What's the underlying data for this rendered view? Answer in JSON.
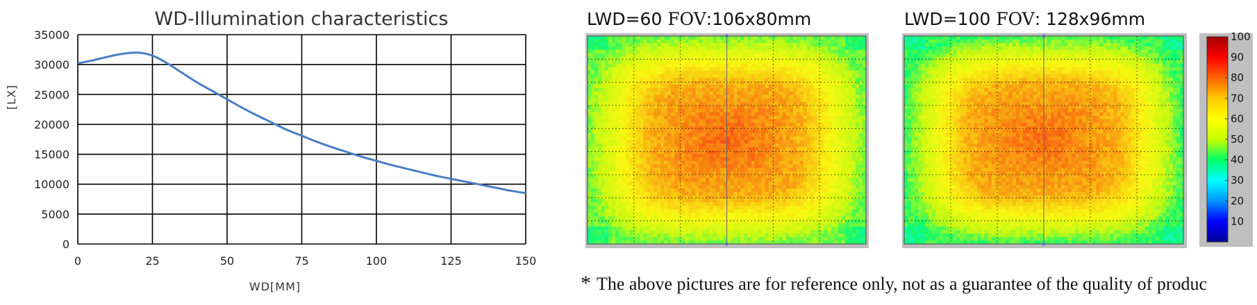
{
  "colors": {
    "line": "#4a7ec4",
    "grid": "#000000",
    "frame": "#bfbfbf"
  },
  "chart_data": [
    {
      "type": "line",
      "title": "WD-Illumination characteristics",
      "xlabel": "WD[MM]",
      "ylabel": "[LX]",
      "xlim": [
        0,
        150
      ],
      "ylim": [
        0,
        35000
      ],
      "x_ticks": [
        "0",
        "25",
        "50",
        "75",
        "100",
        "125",
        "150"
      ],
      "y_ticks": [
        "0",
        "5000",
        "10000",
        "15000",
        "20000",
        "25000",
        "30000",
        "35000"
      ],
      "grid": true,
      "series": [
        {
          "x": [
            0,
            5,
            10,
            15,
            20,
            25,
            30,
            35,
            40,
            45,
            50,
            55,
            60,
            65,
            70,
            75,
            80,
            85,
            90,
            95,
            100,
            105,
            110,
            115,
            120,
            125,
            130,
            135,
            140,
            145,
            150
          ],
          "y": [
            30200,
            30700,
            31300,
            31800,
            32000,
            31500,
            30200,
            28600,
            27000,
            25600,
            24200,
            22800,
            21500,
            20300,
            19100,
            18100,
            17100,
            16200,
            15400,
            14600,
            13900,
            13200,
            12600,
            12000,
            11400,
            10900,
            10400,
            9900,
            9400,
            8900,
            8500
          ]
        }
      ]
    },
    {
      "type": "heatmap",
      "title": "LWD=60 FOV:106x80mm",
      "label_prefix": "LWD=60 ",
      "label_fov": "FOV",
      "label_suffix": ":106x80mm",
      "center": [
        0.5,
        0.5
      ],
      "peak_value": 81,
      "edge_value": 45,
      "corner_value": 37,
      "colorbar_range": [
        0,
        100
      ]
    },
    {
      "type": "heatmap",
      "title": "LWD=100 FOV: 128x96mm",
      "label_prefix": "LWD=100 ",
      "label_fov": "FOV",
      "label_suffix": ": 128x96mm",
      "center": [
        0.5,
        0.5
      ],
      "peak_value": 80,
      "edge_value": 42,
      "corner_value": 35,
      "colorbar_range": [
        0,
        100
      ]
    }
  ],
  "colorbar": {
    "ticks": [
      "100",
      "90",
      "80",
      "70",
      "60",
      "50",
      "40",
      "30",
      "20",
      "10"
    ],
    "stops": [
      "#000096",
      "#0000ff",
      "#0096ff",
      "#00ffff",
      "#00ff64",
      "#c8ff00",
      "#ffff00",
      "#ffc800",
      "#ff6400",
      "#ff0000",
      "#a00000"
    ]
  },
  "note": {
    "star": "*",
    "text": "The above pictures are for reference only, not as a guarantee of the quality of produc"
  }
}
